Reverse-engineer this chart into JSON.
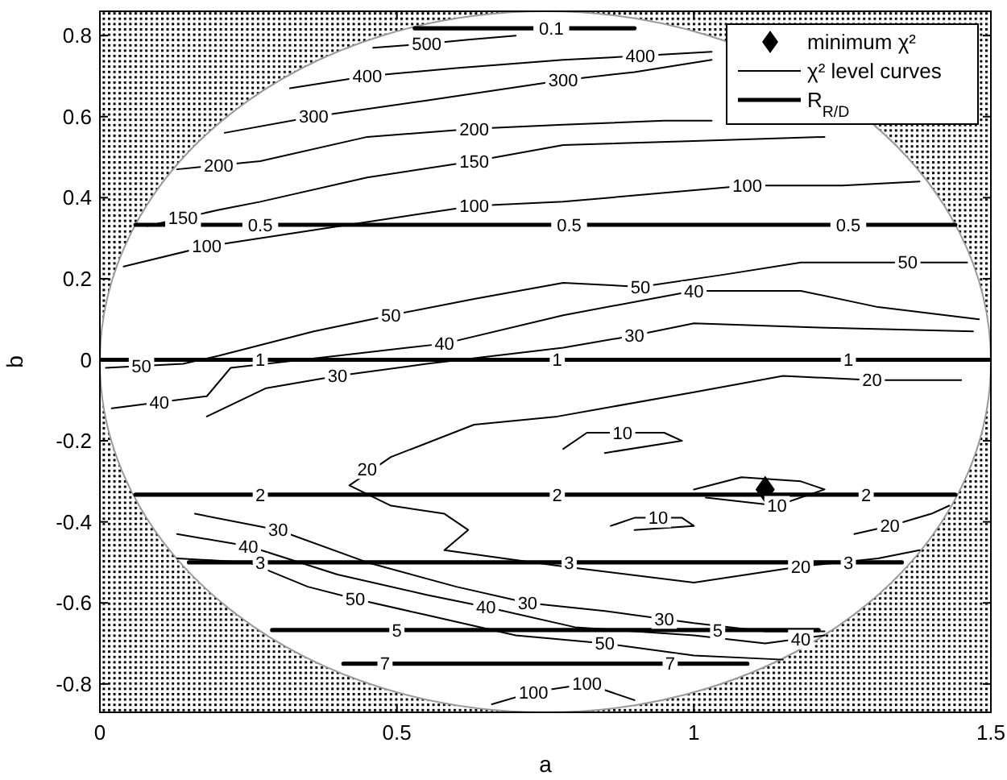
{
  "chart_data": {
    "type": "line",
    "xlabel": "a",
    "ylabel": "b",
    "xlim": [
      0,
      1.5
    ],
    "ylim": [
      -0.87,
      0.86
    ],
    "xticks": [
      0,
      0.5,
      1,
      1.5
    ],
    "yticks": [
      -0.8,
      -0.6,
      -0.4,
      -0.2,
      0,
      0.2,
      0.4,
      0.6,
      0.8
    ],
    "legend": "top right",
    "grid": false,
    "series": [
      {
        "name": "χ² level curves",
        "color": "#000000",
        "x": [
          0.46,
          0.55,
          0.62,
          0.7
        ],
        "values": [
          0.77,
          0.78,
          0.79,
          0.8
        ]
      },
      {
        "color": "#000000",
        "x": [
          0.32,
          0.45,
          0.6,
          0.78,
          0.91,
          1.03
        ],
        "values": [
          0.67,
          0.7,
          0.72,
          0.74,
          0.75,
          0.76
        ]
      },
      {
        "color": "#000000",
        "x": [
          0.21,
          0.36,
          0.55,
          0.78,
          0.9,
          1.03
        ],
        "values": [
          0.56,
          0.6,
          0.64,
          0.69,
          0.71,
          0.74
        ]
      },
      {
        "color": "#000000",
        "x": [
          0.13,
          0.27,
          0.45,
          0.63,
          0.78,
          0.95,
          1.03
        ],
        "values": [
          0.47,
          0.49,
          0.55,
          0.57,
          0.58,
          0.59,
          0.59
        ]
      },
      {
        "color": "#000000",
        "x": [
          0.08,
          0.2,
          0.27,
          0.45,
          0.63,
          0.78,
          1.0,
          1.22
        ],
        "values": [
          0.33,
          0.37,
          0.39,
          0.45,
          0.49,
          0.53,
          0.54,
          0.55
        ]
      },
      {
        "color": "#000000",
        "x": [
          0.04,
          0.18,
          0.36,
          0.63,
          0.78,
          1.09,
          1.25,
          1.38
        ],
        "values": [
          0.23,
          0.28,
          0.32,
          0.38,
          0.39,
          0.43,
          0.43,
          0.44
        ]
      },
      {
        "color": "#000000",
        "x": [
          0.01,
          0.14,
          0.2,
          0.36,
          0.49,
          0.63,
          0.78,
          0.91,
          1.05,
          1.18,
          1.36,
          1.46
        ],
        "values": [
          -0.02,
          -0.01,
          0.01,
          0.07,
          0.11,
          0.15,
          0.19,
          0.18,
          0.21,
          0.24,
          0.24,
          0.24
        ]
      },
      {
        "color": "#000000",
        "x": [
          0.02,
          0.18,
          0.22,
          0.4,
          0.58,
          0.78,
          1.0,
          1.18,
          1.31,
          1.48
        ],
        "values": [
          -0.12,
          -0.09,
          -0.02,
          0.01,
          0.04,
          0.11,
          0.17,
          0.17,
          0.13,
          0.1
        ]
      },
      {
        "color": "#000000",
        "x": [
          0.18,
          0.28,
          0.4,
          0.55,
          0.78,
          0.9,
          1.0,
          1.2,
          1.47
        ],
        "values": [
          -0.14,
          -0.07,
          -0.04,
          -0.01,
          0.03,
          0.06,
          0.09,
          0.08,
          0.07
        ]
      },
      {
        "color": "#000000",
        "x": [
          1.45,
          1.3,
          1.15,
          1.0,
          0.77,
          0.63,
          0.49,
          0.42,
          0.49,
          0.58,
          0.62,
          0.58,
          0.68,
          0.78,
          1.0,
          1.18,
          1.31,
          1.38
        ],
        "values": [
          -0.05,
          -0.05,
          -0.04,
          -0.08,
          -0.14,
          -0.16,
          -0.24,
          -0.31,
          -0.36,
          -0.38,
          -0.42,
          -0.47,
          -0.49,
          -0.51,
          -0.55,
          -0.51,
          -0.49,
          -0.47
        ]
      },
      {
        "color": "#000000",
        "x": [
          1.27,
          1.33,
          1.4,
          1.43
        ],
        "values": [
          -0.43,
          -0.41,
          -0.38,
          -0.36
        ]
      },
      {
        "color": "#000000",
        "x": [
          0.16,
          0.3,
          0.45,
          0.6,
          0.72,
          0.85,
          1.0,
          1.12,
          1.22
        ],
        "values": [
          -0.38,
          -0.42,
          -0.5,
          -0.56,
          -0.6,
          -0.62,
          -0.65,
          -0.67,
          -0.67
        ]
      },
      {
        "color": "#000000",
        "x": [
          0.13,
          0.25,
          0.4,
          0.55,
          0.65,
          0.8,
          1.0,
          1.12,
          1.22
        ],
        "values": [
          -0.43,
          -0.46,
          -0.53,
          -0.58,
          -0.61,
          -0.66,
          -0.68,
          -0.7,
          -0.68
        ]
      },
      {
        "color": "#000000",
        "x": [
          0.13,
          0.25,
          0.35,
          0.43,
          0.55,
          0.7,
          0.85,
          1.0,
          1.15
        ],
        "values": [
          -0.49,
          -0.5,
          -0.56,
          -0.59,
          -0.63,
          -0.68,
          -0.7,
          -0.73,
          -0.74
        ]
      },
      {
        "color": "#000000",
        "x": [
          0.66,
          0.73,
          0.82,
          0.9
        ],
        "values": [
          -0.85,
          -0.82,
          -0.8,
          -0.84
        ]
      },
      {
        "color": "#000000",
        "x": [
          1.0,
          1.08,
          1.18,
          1.22,
          1.14,
          1.02
        ],
        "values": [
          -0.32,
          -0.29,
          -0.3,
          -0.32,
          -0.36,
          -0.34
        ]
      },
      {
        "color": "#000000",
        "x": [
          0.78,
          0.82,
          0.95,
          0.98,
          0.85
        ],
        "values": [
          -0.22,
          -0.18,
          -0.18,
          -0.2,
          -0.23
        ]
      },
      {
        "color": "#000000",
        "x": [
          0.86,
          0.9,
          0.98,
          1.0,
          0.9
        ],
        "values": [
          -0.41,
          -0.39,
          -0.39,
          -0.41,
          -0.42
        ]
      },
      {
        "name": "R$_{R/D}$",
        "color": "#000000",
        "x": [
          0.53,
          0.9
        ],
        "values": [
          0.818,
          0.818
        ]
      },
      {
        "color": "#000000",
        "x": [
          0.06,
          1.44
        ],
        "values": [
          0.333,
          0.333
        ]
      },
      {
        "color": "#000000",
        "x": [
          0,
          1.5
        ],
        "values": [
          0,
          0
        ]
      },
      {
        "color": "#000000",
        "x": [
          0.06,
          1.44
        ],
        "values": [
          -0.333,
          -0.333
        ]
      },
      {
        "color": "#000000",
        "x": [
          0.15,
          1.35
        ],
        "values": [
          -0.5,
          -0.5
        ]
      },
      {
        "color": "#000000",
        "x": [
          0.29,
          1.21
        ],
        "values": [
          -0.667,
          -0.667
        ]
      },
      {
        "color": "#000000",
        "x": [
          0.41,
          1.09
        ],
        "values": [
          -0.75,
          -0.75
        ]
      },
      {
        "name": "minimum χ²",
        "type": "scatter",
        "marker": "diamond",
        "color": "#000000",
        "x": [
          1.12
        ],
        "values": [
          -0.32
        ]
      }
    ],
    "annotations": [
      {
        "text": "500",
        "x": 0.55,
        "y": 0.78
      },
      {
        "text": "400",
        "x": 0.45,
        "y": 0.7
      },
      {
        "text": "400",
        "x": 0.91,
        "y": 0.75
      },
      {
        "text": "300",
        "x": 0.36,
        "y": 0.6
      },
      {
        "text": "300",
        "x": 0.78,
        "y": 0.69
      },
      {
        "text": "200",
        "x": 0.2,
        "y": 0.48
      },
      {
        "text": "200",
        "x": 0.63,
        "y": 0.57
      },
      {
        "text": "150",
        "x": 0.14,
        "y": 0.35
      },
      {
        "text": "150",
        "x": 0.63,
        "y": 0.49
      },
      {
        "text": "100",
        "x": 0.18,
        "y": 0.28
      },
      {
        "text": "100",
        "x": 0.63,
        "y": 0.38
      },
      {
        "text": "100",
        "x": 1.09,
        "y": 0.43
      },
      {
        "text": "50",
        "x": 0.49,
        "y": 0.11
      },
      {
        "text": "50",
        "x": 0.91,
        "y": 0.18
      },
      {
        "text": "50",
        "x": 1.36,
        "y": 0.24
      },
      {
        "text": "50",
        "x": 0.07,
        "y": -0.015
      },
      {
        "text": "40",
        "x": 0.58,
        "y": 0.04
      },
      {
        "text": "40",
        "x": 1.0,
        "y": 0.17
      },
      {
        "text": "40",
        "x": 0.1,
        "y": -0.105
      },
      {
        "text": "30",
        "x": 0.4,
        "y": -0.04
      },
      {
        "text": "30",
        "x": 0.9,
        "y": 0.06
      },
      {
        "text": "20",
        "x": 0.45,
        "y": -0.27
      },
      {
        "text": "20",
        "x": 1.3,
        "y": -0.05
      },
      {
        "text": "20",
        "x": 1.33,
        "y": -0.41
      },
      {
        "text": "20",
        "x": 1.18,
        "y": -0.51
      },
      {
        "text": "10",
        "x": 0.88,
        "y": -0.18
      },
      {
        "text": "10",
        "x": 1.14,
        "y": -0.36
      },
      {
        "text": "10",
        "x": 0.94,
        "y": -0.39
      },
      {
        "text": "40",
        "x": 0.25,
        "y": -0.46
      },
      {
        "text": "30",
        "x": 0.3,
        "y": -0.42
      },
      {
        "text": "50",
        "x": 0.43,
        "y": -0.59
      },
      {
        "text": "40",
        "x": 0.65,
        "y": -0.61
      },
      {
        "text": "30",
        "x": 0.72,
        "y": -0.6
      },
      {
        "text": "30",
        "x": 0.95,
        "y": -0.64
      },
      {
        "text": "40",
        "x": 1.18,
        "y": -0.69
      },
      {
        "text": "50",
        "x": 0.85,
        "y": -0.7
      },
      {
        "text": "100",
        "x": 0.73,
        "y": -0.82
      },
      {
        "text": "100",
        "x": 0.82,
        "y": -0.8
      },
      {
        "text": "0.1",
        "x": 0.76,
        "y": 0.818
      },
      {
        "text": "0.5",
        "x": 0.27,
        "y": 0.333
      },
      {
        "text": "0.5",
        "x": 0.79,
        "y": 0.333
      },
      {
        "text": "0.5",
        "x": 1.26,
        "y": 0.333
      },
      {
        "text": "1",
        "x": 0.27,
        "y": 0
      },
      {
        "text": "1",
        "x": 0.77,
        "y": 0
      },
      {
        "text": "1",
        "x": 1.26,
        "y": 0
      },
      {
        "text": "2",
        "x": 0.27,
        "y": -0.333
      },
      {
        "text": "2",
        "x": 0.77,
        "y": -0.333
      },
      {
        "text": "2",
        "x": 1.29,
        "y": -0.333
      },
      {
        "text": "3",
        "x": 0.27,
        "y": -0.5
      },
      {
        "text": "3",
        "x": 0.79,
        "y": -0.5
      },
      {
        "text": "3",
        "x": 1.26,
        "y": -0.5
      },
      {
        "text": "5",
        "x": 0.5,
        "y": -0.667
      },
      {
        "text": "5",
        "x": 1.04,
        "y": -0.667
      },
      {
        "text": "7",
        "x": 0.48,
        "y": -0.75
      },
      {
        "text": "7",
        "x": 0.96,
        "y": -0.75
      }
    ]
  }
}
